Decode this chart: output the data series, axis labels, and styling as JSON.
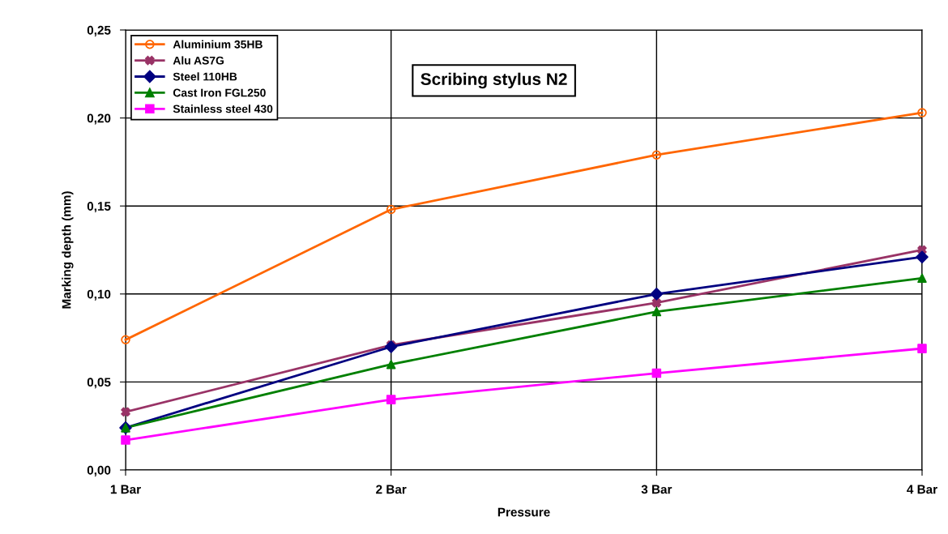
{
  "chart_data": {
    "type": "line",
    "title": "Scribing stylus N2",
    "xlabel": "Pressure",
    "ylabel": "Marking depth (mm)",
    "categories": [
      "1 Bar",
      "2 Bar",
      "3 Bar",
      "4 Bar"
    ],
    "series": [
      {
        "name": "Aluminium 35HB",
        "color": "#ff6600",
        "marker": "circle",
        "values": [
          0.074,
          0.148,
          0.179,
          0.203
        ]
      },
      {
        "name": "Alu AS7G",
        "color": "#993366",
        "marker": "cross",
        "values": [
          0.033,
          0.071,
          0.095,
          0.125
        ]
      },
      {
        "name": "Steel 110HB",
        "color": "#000080",
        "marker": "diamond",
        "values": [
          0.024,
          0.07,
          0.1,
          0.121
        ]
      },
      {
        "name": "Cast Iron FGL250",
        "color": "#008000",
        "marker": "triangle",
        "values": [
          0.024,
          0.06,
          0.09,
          0.109
        ]
      },
      {
        "name": "Stainless steel 430",
        "color": "#ff00ff",
        "marker": "square",
        "values": [
          0.017,
          0.04,
          0.055,
          0.069
        ]
      }
    ],
    "ylim": [
      0,
      0.25
    ],
    "yticks": [
      {
        "value": 0,
        "label": "0,00"
      },
      {
        "value": 0.05,
        "label": "0,05"
      },
      {
        "value": 0.1,
        "label": "0,10"
      },
      {
        "value": 0.15,
        "label": "0,15"
      },
      {
        "value": 0.2,
        "label": "0,20"
      },
      {
        "value": 0.25,
        "label": "0,25"
      }
    ],
    "grid": true,
    "legend": "top left",
    "line_style": "solid"
  }
}
